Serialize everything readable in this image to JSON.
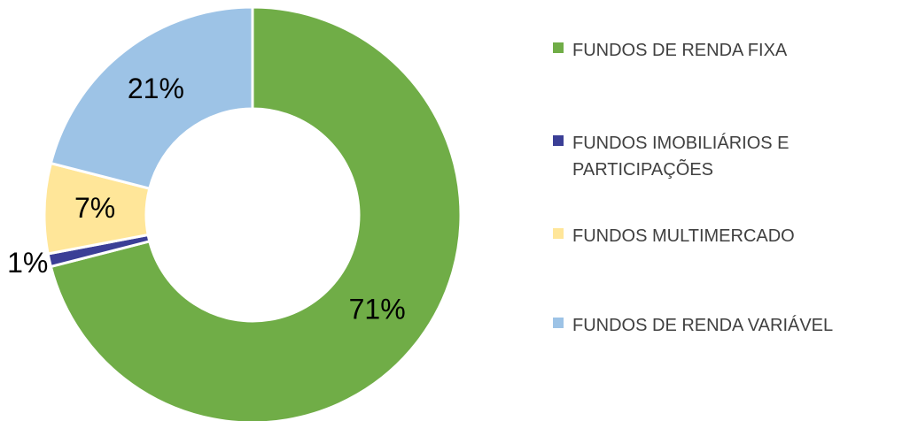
{
  "chart_data": {
    "type": "donut",
    "categories": [
      "FUNDOS DE RENDA FIXA",
      "FUNDOS IMOBILIÁRIOS E PARTICIPAÇÕES",
      "FUNDOS MULTIMERCADO",
      "FUNDOS DE RENDA VARIÁVEL"
    ],
    "values": [
      71,
      1,
      7,
      21
    ],
    "value_labels": [
      "71%",
      "1%",
      "7%",
      "21%"
    ],
    "colors": [
      "#70ad47",
      "#3b3f96",
      "#ffe699",
      "#9dc3e6"
    ],
    "legend": "right"
  }
}
